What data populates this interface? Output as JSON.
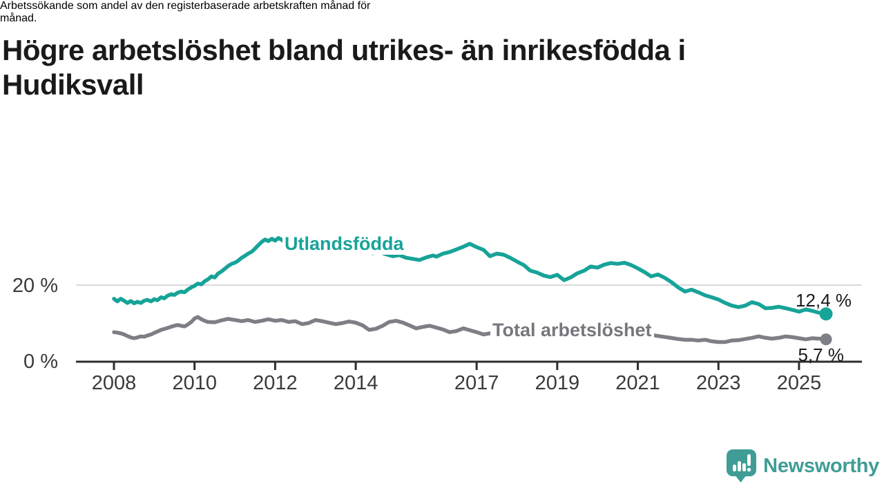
{
  "title": {
    "lines": [
      "Högre arbetslöshet bland utrikes- än inrikesfödda i",
      "Hudiksvall"
    ]
  },
  "subtitle": {
    "lines": [
      "Arbetssökande som andel av den registerbaserade arbetskraften månad för",
      "månad."
    ]
  },
  "colors": {
    "title_text": "#1a1a1a",
    "axis": "#2e2e2e",
    "grid": "#d9d9d9",
    "tick_text": "#3a3a3a",
    "teal": "#17a398",
    "gray": "#7e7e86",
    "label_gray": "#76767e",
    "logo_teal": "#3f9d96"
  },
  "chart_data": {
    "type": "line",
    "title": "Högre arbetslöshet bland utrikes- än inrikesfödda i Hudiksvall",
    "subtitle": "Arbetssökande som andel av den registerbaserade arbetskraften månad för månad.",
    "xlabel": "",
    "ylabel": "",
    "grid": "y-gridline-at-20-only",
    "legend_position": "inline-on-lines",
    "ylim": [
      0,
      33
    ],
    "xlim": [
      2008,
      2025.8
    ],
    "y_ticks": [
      {
        "value": 0,
        "label": "0 %"
      },
      {
        "value": 20,
        "label": "20 %"
      }
    ],
    "x_ticks": [
      {
        "year": 2008,
        "label": "2008"
      },
      {
        "year": 2010,
        "label": "2010"
      },
      {
        "year": 2012,
        "label": "2012"
      },
      {
        "year": 2014,
        "label": "2014"
      },
      {
        "year": 2017,
        "label": "2017"
      },
      {
        "year": 2019,
        "label": "2019"
      },
      {
        "year": 2021,
        "label": "2021"
      },
      {
        "year": 2023,
        "label": "2023"
      },
      {
        "year": 2025,
        "label": "2025"
      }
    ],
    "series": [
      {
        "name": "Utlandsfödda",
        "color": "#17a398",
        "end_value": 12.4,
        "end_label": "12,4 %",
        "points": [
          [
            2008.0,
            16.4
          ],
          [
            2008.08,
            15.7
          ],
          [
            2008.17,
            16.4
          ],
          [
            2008.25,
            15.9
          ],
          [
            2008.33,
            15.3
          ],
          [
            2008.42,
            15.8
          ],
          [
            2008.5,
            15.2
          ],
          [
            2008.58,
            15.6
          ],
          [
            2008.67,
            15.3
          ],
          [
            2008.75,
            15.9
          ],
          [
            2008.83,
            16.1
          ],
          [
            2008.92,
            15.7
          ],
          [
            2009.0,
            16.3
          ],
          [
            2009.08,
            16.0
          ],
          [
            2009.17,
            16.8
          ],
          [
            2009.25,
            16.5
          ],
          [
            2009.33,
            17.2
          ],
          [
            2009.42,
            17.6
          ],
          [
            2009.5,
            17.4
          ],
          [
            2009.58,
            18.0
          ],
          [
            2009.67,
            18.3
          ],
          [
            2009.75,
            18.1
          ],
          [
            2009.83,
            18.8
          ],
          [
            2009.92,
            19.4
          ],
          [
            2010.0,
            19.8
          ],
          [
            2010.08,
            20.4
          ],
          [
            2010.17,
            20.2
          ],
          [
            2010.25,
            21.0
          ],
          [
            2010.33,
            21.5
          ],
          [
            2010.42,
            22.3
          ],
          [
            2010.5,
            22.0
          ],
          [
            2010.58,
            23.0
          ],
          [
            2010.67,
            23.6
          ],
          [
            2010.75,
            24.3
          ],
          [
            2010.83,
            25.0
          ],
          [
            2010.92,
            25.6
          ],
          [
            2011.0,
            25.9
          ],
          [
            2011.08,
            26.4
          ],
          [
            2011.17,
            27.2
          ],
          [
            2011.25,
            27.7
          ],
          [
            2011.33,
            28.3
          ],
          [
            2011.42,
            28.8
          ],
          [
            2011.5,
            29.6
          ],
          [
            2011.58,
            30.5
          ],
          [
            2011.67,
            31.4
          ],
          [
            2011.75,
            32.0
          ],
          [
            2011.83,
            31.6
          ],
          [
            2011.92,
            32.2
          ],
          [
            2012.0,
            31.7
          ],
          [
            2012.08,
            32.4
          ],
          [
            2012.17,
            31.9
          ],
          [
            2012.25,
            31.2
          ],
          [
            2012.33,
            31.7
          ],
          [
            2012.42,
            31.0
          ],
          [
            2012.58,
            30.6
          ],
          [
            2012.75,
            30.9
          ],
          [
            2012.92,
            30.2
          ],
          [
            2013.08,
            30.5
          ],
          [
            2013.25,
            29.8
          ],
          [
            2013.42,
            30.1
          ],
          [
            2013.58,
            29.5
          ],
          [
            2013.75,
            29.8
          ],
          [
            2013.92,
            29.2
          ],
          [
            2014.08,
            29.5
          ],
          [
            2014.25,
            28.9
          ],
          [
            2014.42,
            28.4
          ],
          [
            2014.58,
            28.8
          ],
          [
            2014.75,
            28.1
          ],
          [
            2014.92,
            27.6
          ],
          [
            2015.08,
            27.9
          ],
          [
            2015.25,
            27.2
          ],
          [
            2015.42,
            26.9
          ],
          [
            2015.58,
            26.6
          ],
          [
            2015.75,
            27.3
          ],
          [
            2015.92,
            27.8
          ],
          [
            2016.0,
            27.5
          ],
          [
            2016.17,
            28.3
          ],
          [
            2016.33,
            28.7
          ],
          [
            2016.5,
            29.4
          ],
          [
            2016.67,
            30.1
          ],
          [
            2016.83,
            30.9
          ],
          [
            2016.92,
            30.4
          ],
          [
            2017.0,
            30.0
          ],
          [
            2017.17,
            29.3
          ],
          [
            2017.33,
            27.6
          ],
          [
            2017.5,
            28.3
          ],
          [
            2017.67,
            28.0
          ],
          [
            2017.83,
            27.2
          ],
          [
            2018.0,
            26.2
          ],
          [
            2018.17,
            25.3
          ],
          [
            2018.33,
            23.8
          ],
          [
            2018.5,
            23.3
          ],
          [
            2018.67,
            22.5
          ],
          [
            2018.83,
            22.1
          ],
          [
            2019.0,
            22.7
          ],
          [
            2019.17,
            21.3
          ],
          [
            2019.33,
            22.0
          ],
          [
            2019.5,
            23.1
          ],
          [
            2019.67,
            23.8
          ],
          [
            2019.83,
            24.9
          ],
          [
            2020.0,
            24.6
          ],
          [
            2020.17,
            25.4
          ],
          [
            2020.33,
            25.8
          ],
          [
            2020.5,
            25.6
          ],
          [
            2020.67,
            25.9
          ],
          [
            2020.83,
            25.3
          ],
          [
            2021.0,
            24.4
          ],
          [
            2021.17,
            23.4
          ],
          [
            2021.33,
            22.3
          ],
          [
            2021.5,
            22.8
          ],
          [
            2021.67,
            21.9
          ],
          [
            2021.83,
            20.8
          ],
          [
            2022.0,
            19.4
          ],
          [
            2022.17,
            18.3
          ],
          [
            2022.33,
            18.8
          ],
          [
            2022.5,
            18.1
          ],
          [
            2022.67,
            17.3
          ],
          [
            2022.83,
            16.8
          ],
          [
            2023.0,
            16.2
          ],
          [
            2023.17,
            15.3
          ],
          [
            2023.33,
            14.6
          ],
          [
            2023.5,
            14.2
          ],
          [
            2023.67,
            14.6
          ],
          [
            2023.83,
            15.5
          ],
          [
            2024.0,
            15.0
          ],
          [
            2024.17,
            13.9
          ],
          [
            2024.33,
            14.0
          ],
          [
            2024.5,
            14.3
          ],
          [
            2024.67,
            13.9
          ],
          [
            2024.83,
            13.5
          ],
          [
            2025.0,
            13.0
          ],
          [
            2025.17,
            13.6
          ],
          [
            2025.33,
            13.2
          ],
          [
            2025.5,
            12.7
          ],
          [
            2025.67,
            12.4
          ]
        ]
      },
      {
        "name": "Total arbetslöshet",
        "color": "#7e7e86",
        "end_value": 5.7,
        "end_label": "5,7 %",
        "points": [
          [
            2008.0,
            7.6
          ],
          [
            2008.08,
            7.5
          ],
          [
            2008.17,
            7.3
          ],
          [
            2008.25,
            7.0
          ],
          [
            2008.33,
            6.6
          ],
          [
            2008.42,
            6.2
          ],
          [
            2008.5,
            6.0
          ],
          [
            2008.58,
            6.2
          ],
          [
            2008.67,
            6.5
          ],
          [
            2008.75,
            6.4
          ],
          [
            2008.83,
            6.7
          ],
          [
            2008.92,
            7.0
          ],
          [
            2009.0,
            7.4
          ],
          [
            2009.17,
            8.2
          ],
          [
            2009.33,
            8.7
          ],
          [
            2009.5,
            9.3
          ],
          [
            2009.58,
            9.5
          ],
          [
            2009.75,
            9.1
          ],
          [
            2009.83,
            9.6
          ],
          [
            2009.92,
            10.3
          ],
          [
            2010.0,
            11.2
          ],
          [
            2010.08,
            11.6
          ],
          [
            2010.17,
            11.0
          ],
          [
            2010.25,
            10.6
          ],
          [
            2010.33,
            10.3
          ],
          [
            2010.5,
            10.2
          ],
          [
            2010.67,
            10.7
          ],
          [
            2010.83,
            11.1
          ],
          [
            2011.0,
            10.8
          ],
          [
            2011.17,
            10.5
          ],
          [
            2011.33,
            10.8
          ],
          [
            2011.5,
            10.3
          ],
          [
            2011.67,
            10.6
          ],
          [
            2011.83,
            11.0
          ],
          [
            2012.0,
            10.6
          ],
          [
            2012.17,
            10.8
          ],
          [
            2012.33,
            10.3
          ],
          [
            2012.5,
            10.5
          ],
          [
            2012.67,
            9.7
          ],
          [
            2012.83,
            10.0
          ],
          [
            2013.0,
            10.8
          ],
          [
            2013.17,
            10.5
          ],
          [
            2013.33,
            10.1
          ],
          [
            2013.5,
            9.7
          ],
          [
            2013.67,
            10.0
          ],
          [
            2013.83,
            10.4
          ],
          [
            2014.0,
            10.1
          ],
          [
            2014.17,
            9.4
          ],
          [
            2014.33,
            8.2
          ],
          [
            2014.5,
            8.5
          ],
          [
            2014.67,
            9.3
          ],
          [
            2014.83,
            10.3
          ],
          [
            2015.0,
            10.6
          ],
          [
            2015.17,
            10.1
          ],
          [
            2015.33,
            9.4
          ],
          [
            2015.5,
            8.6
          ],
          [
            2015.67,
            9.0
          ],
          [
            2015.83,
            9.3
          ],
          [
            2016.0,
            8.8
          ],
          [
            2016.17,
            8.3
          ],
          [
            2016.33,
            7.6
          ],
          [
            2016.5,
            7.9
          ],
          [
            2016.67,
            8.6
          ],
          [
            2016.83,
            8.1
          ],
          [
            2017.0,
            7.6
          ],
          [
            2017.17,
            7.0
          ],
          [
            2017.33,
            7.3
          ],
          [
            2017.5,
            6.7
          ],
          [
            2017.67,
            6.9
          ],
          [
            2017.83,
            6.6
          ],
          [
            2018.0,
            6.8
          ],
          [
            2018.25,
            6.4
          ],
          [
            2018.5,
            6.2
          ],
          [
            2018.75,
            6.5
          ],
          [
            2019.0,
            6.7
          ],
          [
            2019.25,
            6.3
          ],
          [
            2019.5,
            6.1
          ],
          [
            2019.75,
            6.4
          ],
          [
            2020.0,
            6.9
          ],
          [
            2020.25,
            7.6
          ],
          [
            2020.5,
            7.9
          ],
          [
            2020.75,
            7.7
          ],
          [
            2021.0,
            7.4
          ],
          [
            2021.25,
            7.0
          ],
          [
            2021.5,
            6.6
          ],
          [
            2021.75,
            6.2
          ],
          [
            2022.0,
            5.8
          ],
          [
            2022.17,
            5.6
          ],
          [
            2022.33,
            5.6
          ],
          [
            2022.5,
            5.4
          ],
          [
            2022.67,
            5.6
          ],
          [
            2022.83,
            5.2
          ],
          [
            2023.0,
            5.0
          ],
          [
            2023.17,
            5.0
          ],
          [
            2023.33,
            5.4
          ],
          [
            2023.5,
            5.5
          ],
          [
            2023.67,
            5.8
          ],
          [
            2023.83,
            6.1
          ],
          [
            2024.0,
            6.5
          ],
          [
            2024.17,
            6.1
          ],
          [
            2024.33,
            5.9
          ],
          [
            2024.5,
            6.1
          ],
          [
            2024.67,
            6.5
          ],
          [
            2024.83,
            6.3
          ],
          [
            2025.0,
            6.0
          ],
          [
            2025.17,
            5.7
          ],
          [
            2025.33,
            6.0
          ],
          [
            2025.5,
            5.9
          ],
          [
            2025.67,
            5.7
          ]
        ]
      }
    ]
  },
  "footer": {
    "brand": "Newsworthy",
    "logo_icon": "speech-bubble-bar-chart-exclamation"
  }
}
